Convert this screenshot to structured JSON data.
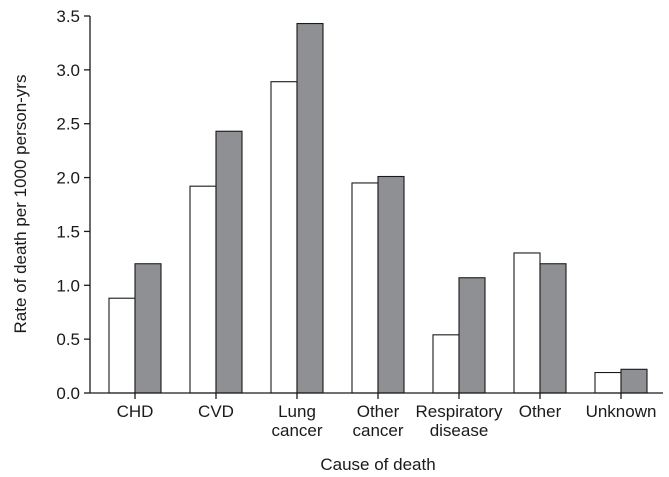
{
  "chart_data": {
    "type": "bar",
    "categories": [
      [
        "CHD"
      ],
      [
        "CVD"
      ],
      [
        "Lung",
        "cancer"
      ],
      [
        "Other",
        "cancer"
      ],
      [
        "Respiratory",
        "disease"
      ],
      [
        "Other"
      ],
      [
        "Unknown"
      ]
    ],
    "series": [
      {
        "color": "#ffffff",
        "values": [
          0.88,
          1.92,
          2.89,
          1.95,
          0.54,
          1.3,
          0.19
        ]
      },
      {
        "color": "#8f9094",
        "values": [
          1.2,
          2.43,
          3.43,
          2.01,
          1.07,
          1.2,
          0.22
        ]
      }
    ],
    "title": "",
    "xlabel": "Cause of death",
    "ylabel": "Rate of death per 1000 person-yrs",
    "ylim": [
      0,
      3.5
    ],
    "yticks": [
      "0.0",
      "0.5",
      "1.0",
      "1.5",
      "2.0",
      "2.5",
      "3.0",
      "3.5"
    ],
    "grid": false,
    "legend": "none"
  }
}
